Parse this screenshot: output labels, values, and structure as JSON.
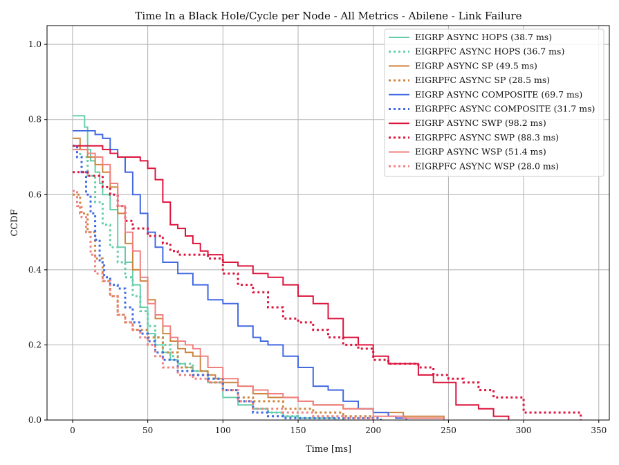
{
  "chart_data": {
    "type": "line",
    "title": "Time In a Black Hole/Cycle per Node - All Metrics - Abilene - Link Failure",
    "xlabel": "Time [ms]",
    "ylabel": "CCDF",
    "xlim": [
      -17,
      357
    ],
    "ylim": [
      0,
      1.05
    ],
    "xticks": [
      0,
      50,
      100,
      150,
      200,
      250,
      300,
      350
    ],
    "yticks": [
      0.0,
      0.2,
      0.4,
      0.6,
      0.8,
      1.0
    ],
    "xtick_labels": [
      "0",
      "50",
      "100",
      "150",
      "200",
      "250",
      "300",
      "350"
    ],
    "ytick_labels": [
      "0.0",
      "0.2",
      "0.4",
      "0.6",
      "0.8",
      "1.0"
    ],
    "grid": true,
    "legend_position": "top-right",
    "series": [
      {
        "name": "EIGRP ASYNC HOPS (38.7 ms)",
        "color": "#66cdaa",
        "style": "solid",
        "x": [
          0,
          5,
          8,
          10,
          12,
          15,
          18,
          20,
          25,
          30,
          35,
          40,
          45,
          50,
          55,
          60,
          65,
          70,
          75,
          80,
          90,
          100,
          110,
          120,
          130,
          140,
          150,
          160,
          175
        ],
        "y": [
          0.81,
          0.81,
          0.78,
          0.72,
          0.69,
          0.66,
          0.63,
          0.6,
          0.56,
          0.46,
          0.42,
          0.36,
          0.3,
          0.23,
          0.2,
          0.18,
          0.16,
          0.15,
          0.14,
          0.13,
          0.1,
          0.06,
          0.04,
          0.03,
          0.02,
          0.01,
          0.005,
          0.005,
          0.0
        ]
      },
      {
        "name": "EIGRPFC ASYNC HOPS (36.7 ms)",
        "color": "#66cdaa",
        "style": "dotted",
        "x": [
          0,
          5,
          10,
          15,
          20,
          25,
          30,
          35,
          40,
          45,
          50,
          55,
          60,
          65,
          70,
          80,
          90,
          100,
          110,
          120,
          130,
          140,
          150,
          160,
          180
        ],
        "y": [
          0.73,
          0.7,
          0.65,
          0.58,
          0.52,
          0.46,
          0.42,
          0.38,
          0.33,
          0.29,
          0.25,
          0.22,
          0.2,
          0.17,
          0.15,
          0.13,
          0.11,
          0.08,
          0.05,
          0.03,
          0.02,
          0.01,
          0.005,
          0.005,
          0.0
        ]
      },
      {
        "name": "EIGRP ASYNC SP (49.5 ms)",
        "color": "#cd853f",
        "style": "solid",
        "x": [
          0,
          5,
          10,
          15,
          20,
          25,
          30,
          35,
          40,
          45,
          50,
          55,
          60,
          65,
          70,
          75,
          80,
          85,
          90,
          95,
          100,
          110,
          120,
          130,
          150,
          160,
          180,
          200,
          220,
          247
        ],
        "y": [
          0.75,
          0.72,
          0.7,
          0.68,
          0.66,
          0.62,
          0.55,
          0.47,
          0.4,
          0.37,
          0.32,
          0.27,
          0.23,
          0.21,
          0.19,
          0.18,
          0.17,
          0.13,
          0.12,
          0.11,
          0.1,
          0.09,
          0.07,
          0.06,
          0.05,
          0.04,
          0.03,
          0.02,
          0.01,
          0.0
        ]
      },
      {
        "name": "EIGRPFC ASYNC SP (28.5 ms)",
        "color": "#cd853f",
        "style": "dotted",
        "x": [
          0,
          5,
          10,
          15,
          20,
          25,
          30,
          35,
          40,
          50,
          60,
          70,
          80,
          90,
          100,
          110,
          120,
          140,
          160,
          180,
          200
        ],
        "y": [
          0.6,
          0.55,
          0.5,
          0.43,
          0.37,
          0.33,
          0.28,
          0.26,
          0.24,
          0.22,
          0.18,
          0.14,
          0.12,
          0.1,
          0.08,
          0.06,
          0.05,
          0.03,
          0.02,
          0.01,
          0.0
        ]
      },
      {
        "name": "EIGRP ASYNC COMPOSITE (69.7 ms)",
        "color": "#4169e1",
        "style": "solid",
        "x": [
          0,
          5,
          10,
          15,
          20,
          25,
          30,
          35,
          40,
          45,
          50,
          55,
          60,
          70,
          80,
          90,
          100,
          110,
          120,
          125,
          130,
          140,
          150,
          160,
          170,
          180,
          190,
          200,
          210,
          215,
          222
        ],
        "y": [
          0.77,
          0.77,
          0.77,
          0.76,
          0.75,
          0.72,
          0.7,
          0.66,
          0.6,
          0.55,
          0.5,
          0.46,
          0.42,
          0.39,
          0.36,
          0.32,
          0.31,
          0.25,
          0.22,
          0.21,
          0.2,
          0.17,
          0.14,
          0.09,
          0.08,
          0.05,
          0.03,
          0.02,
          0.01,
          0.005,
          0.0
        ]
      },
      {
        "name": "EIGRPFC ASYNC COMPOSITE (31.7 ms)",
        "color": "#4169e1",
        "style": "dotted",
        "x": [
          0,
          3,
          6,
          9,
          12,
          15,
          18,
          21,
          25,
          30,
          35,
          40,
          45,
          50,
          55,
          60,
          70,
          80,
          90,
          100,
          110,
          120,
          130,
          140,
          150,
          190,
          205
        ],
        "y": [
          0.73,
          0.7,
          0.66,
          0.6,
          0.55,
          0.48,
          0.42,
          0.38,
          0.36,
          0.35,
          0.3,
          0.26,
          0.23,
          0.21,
          0.18,
          0.16,
          0.13,
          0.12,
          0.11,
          0.08,
          0.05,
          0.02,
          0.01,
          0.005,
          0.005,
          0.005,
          0.0
        ]
      },
      {
        "name": "EIGRP ASYNC SWP (98.2 ms)",
        "color": "#dc143c",
        "style": "solid",
        "x": [
          0,
          10,
          20,
          25,
          30,
          40,
          45,
          50,
          55,
          60,
          65,
          70,
          75,
          80,
          85,
          90,
          100,
          110,
          120,
          130,
          140,
          150,
          160,
          170,
          180,
          190,
          200,
          210,
          220,
          230,
          240,
          245,
          250,
          255,
          270,
          280,
          290
        ],
        "y": [
          0.73,
          0.73,
          0.72,
          0.71,
          0.7,
          0.7,
          0.69,
          0.67,
          0.64,
          0.58,
          0.52,
          0.51,
          0.49,
          0.47,
          0.45,
          0.44,
          0.42,
          0.41,
          0.39,
          0.38,
          0.36,
          0.33,
          0.31,
          0.27,
          0.22,
          0.2,
          0.17,
          0.15,
          0.15,
          0.12,
          0.1,
          0.1,
          0.1,
          0.04,
          0.03,
          0.01,
          0.0
        ]
      },
      {
        "name": "EIGRPFC ASYNC SWP (88.3 ms)",
        "color": "#dc143c",
        "style": "dotted",
        "x": [
          0,
          10,
          20,
          25,
          30,
          35,
          40,
          50,
          60,
          65,
          70,
          80,
          90,
          100,
          110,
          120,
          130,
          140,
          150,
          160,
          170,
          180,
          190,
          200,
          210,
          220,
          230,
          240,
          250,
          260,
          270,
          280,
          300,
          320,
          338
        ],
        "y": [
          0.66,
          0.65,
          0.62,
          0.6,
          0.57,
          0.53,
          0.51,
          0.49,
          0.47,
          0.45,
          0.44,
          0.44,
          0.43,
          0.39,
          0.36,
          0.34,
          0.3,
          0.27,
          0.26,
          0.24,
          0.22,
          0.2,
          0.19,
          0.16,
          0.15,
          0.15,
          0.14,
          0.12,
          0.11,
          0.1,
          0.08,
          0.06,
          0.02,
          0.02,
          0.0
        ]
      },
      {
        "name": "EIGRP ASYNC WSP (51.4 ms)",
        "color": "#f08080",
        "style": "solid",
        "x": [
          0,
          5,
          10,
          15,
          20,
          25,
          30,
          35,
          40,
          45,
          50,
          55,
          60,
          65,
          70,
          75,
          80,
          85,
          90,
          100,
          110,
          120,
          130,
          140,
          150,
          160,
          180,
          200,
          220,
          247
        ],
        "y": [
          0.72,
          0.72,
          0.71,
          0.7,
          0.68,
          0.63,
          0.57,
          0.5,
          0.45,
          0.38,
          0.31,
          0.28,
          0.25,
          0.22,
          0.21,
          0.2,
          0.19,
          0.17,
          0.14,
          0.11,
          0.09,
          0.08,
          0.07,
          0.06,
          0.05,
          0.04,
          0.03,
          0.01,
          0.005,
          0.0
        ]
      },
      {
        "name": "EIGRPFC ASYNC WSP (28.0 ms)",
        "color": "#f08080",
        "style": "dotted",
        "x": [
          0,
          3,
          6,
          9,
          12,
          15,
          20,
          25,
          30,
          35,
          40,
          45,
          50,
          55,
          60,
          70,
          80,
          90,
          100,
          110,
          120,
          140,
          160,
          180,
          200
        ],
        "y": [
          0.61,
          0.57,
          0.54,
          0.5,
          0.44,
          0.39,
          0.37,
          0.33,
          0.28,
          0.26,
          0.24,
          0.22,
          0.2,
          0.17,
          0.14,
          0.12,
          0.11,
          0.1,
          0.08,
          0.05,
          0.03,
          0.02,
          0.01,
          0.005,
          0.0
        ]
      }
    ]
  }
}
